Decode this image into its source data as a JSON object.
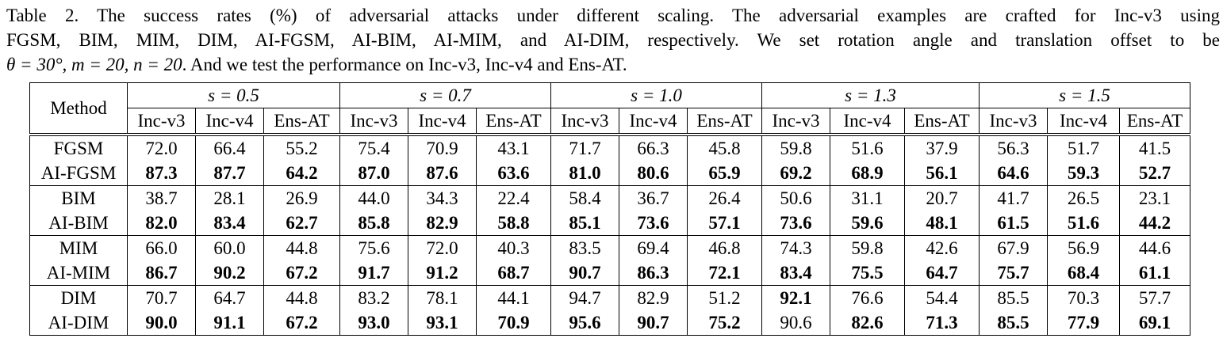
{
  "caption": {
    "line1": "Table 2. The success rates (%) of adversarial attacks under different scaling.  The adversarial examples are crafted for Inc-v3 using",
    "line2": "FGSM, BIM, MIM, DIM, AI-FGSM, AI-BIM, AI-MIM, and AI-DIM, respectively.  We set rotation angle and translation offset to be",
    "line3_theta": "θ = 30°, m = 20, n = 20",
    "line3_rest": ". And we test the performance on Inc-v3, Inc-v4 and Ens-AT."
  },
  "table": {
    "method_header": "Method",
    "scales": [
      "s = 0.5",
      "s = 0.7",
      "s = 1.0",
      "s = 1.3",
      "s = 1.5"
    ],
    "subheaders": [
      "Inc-v3",
      "Inc-v4",
      "Ens-AT"
    ],
    "rows": [
      {
        "method": "FGSM",
        "values": [
          "72.0",
          "66.4",
          "55.2",
          "75.4",
          "70.9",
          "43.1",
          "71.7",
          "66.3",
          "45.8",
          "59.8",
          "51.6",
          "37.9",
          "56.3",
          "51.7",
          "41.5"
        ],
        "bold": []
      },
      {
        "method": "AI-FGSM",
        "values": [
          "87.3",
          "87.7",
          "64.2",
          "87.0",
          "87.6",
          "63.6",
          "81.0",
          "80.6",
          "65.9",
          "69.2",
          "68.9",
          "56.1",
          "64.6",
          "59.3",
          "52.7"
        ],
        "bold": [
          0,
          1,
          2,
          3,
          4,
          5,
          6,
          7,
          8,
          9,
          10,
          11,
          12,
          13,
          14
        ]
      },
      {
        "method": "BIM",
        "values": [
          "38.7",
          "28.1",
          "26.9",
          "44.0",
          "34.3",
          "22.4",
          "58.4",
          "36.7",
          "26.4",
          "50.6",
          "31.1",
          "20.7",
          "41.7",
          "26.5",
          "23.1"
        ],
        "bold": []
      },
      {
        "method": "AI-BIM",
        "values": [
          "82.0",
          "83.4",
          "62.7",
          "85.8",
          "82.9",
          "58.8",
          "85.1",
          "73.6",
          "57.1",
          "73.6",
          "59.6",
          "48.1",
          "61.5",
          "51.6",
          "44.2"
        ],
        "bold": [
          0,
          1,
          2,
          3,
          4,
          5,
          6,
          7,
          8,
          9,
          10,
          11,
          12,
          13,
          14
        ]
      },
      {
        "method": "MIM",
        "values": [
          "66.0",
          "60.0",
          "44.8",
          "75.6",
          "72.0",
          "40.3",
          "83.5",
          "69.4",
          "46.8",
          "74.3",
          "59.8",
          "42.6",
          "67.9",
          "56.9",
          "44.6"
        ],
        "bold": []
      },
      {
        "method": "AI-MIM",
        "values": [
          "86.7",
          "90.2",
          "67.2",
          "91.7",
          "91.2",
          "68.7",
          "90.7",
          "86.3",
          "72.1",
          "83.4",
          "75.5",
          "64.7",
          "75.7",
          "68.4",
          "61.1"
        ],
        "bold": [
          0,
          1,
          2,
          3,
          4,
          5,
          6,
          7,
          8,
          9,
          10,
          11,
          12,
          13,
          14
        ]
      },
      {
        "method": "DIM",
        "values": [
          "70.7",
          "64.7",
          "44.8",
          "83.2",
          "78.1",
          "44.1",
          "94.7",
          "82.9",
          "51.2",
          "92.1",
          "76.6",
          "54.4",
          "85.5",
          "70.3",
          "57.7"
        ],
        "bold": [
          9
        ]
      },
      {
        "method": "AI-DIM",
        "values": [
          "90.0",
          "91.1",
          "67.2",
          "93.0",
          "93.1",
          "70.9",
          "95.6",
          "90.7",
          "75.2",
          "90.6",
          "82.6",
          "71.3",
          "85.5",
          "77.9",
          "69.1"
        ],
        "bold": [
          0,
          1,
          2,
          3,
          4,
          5,
          6,
          7,
          8,
          10,
          11,
          12,
          13,
          14
        ]
      }
    ]
  }
}
